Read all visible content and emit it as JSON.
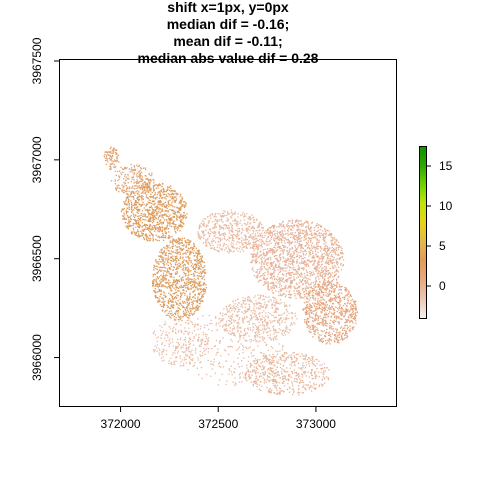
{
  "chart_data": {
    "type": "heatmap",
    "title_lines": [
      "shift x=1px, y=0px",
      "median dif = -0.16;",
      "mean dif = -0.11;",
      "median abs value dif = 0.28"
    ],
    "xlabel": "",
    "ylabel": "",
    "x_ticks": [
      {
        "value": 372000,
        "label": "372000"
      },
      {
        "value": 372500,
        "label": "372500"
      },
      {
        "value": 373000,
        "label": "373000"
      }
    ],
    "y_ticks": [
      {
        "value": 3966000,
        "label": "3966000"
      },
      {
        "value": 3966500,
        "label": "3966500"
      },
      {
        "value": 3967000,
        "label": "3967000"
      },
      {
        "value": 3967500,
        "label": "3967500"
      }
    ],
    "xlim": [
      371690,
      373410
    ],
    "ylim": [
      3965755,
      3967505
    ],
    "colorbar": {
      "range": [
        -4,
        17.5
      ],
      "ticks": [
        {
          "value": 0,
          "label": "0"
        },
        {
          "value": 5,
          "label": "5"
        },
        {
          "value": 10,
          "label": "10"
        },
        {
          "value": 15,
          "label": "15"
        }
      ],
      "colors": [
        "#f2f2f2",
        "#ecc7b3",
        "#e6aa7e",
        "#e29a5b",
        "#e2b94a",
        "#e8d21c",
        "#c2e30a",
        "#6fd100",
        "#2ba600",
        "#0c9400"
      ]
    },
    "regions": [
      {
        "x": 372170,
        "y": 3966740,
        "rx": 170,
        "ry": 150,
        "n": 900,
        "value": 0.4,
        "color": "#dd9a5a"
      },
      {
        "x": 372300,
        "y": 3966400,
        "rx": 140,
        "ry": 210,
        "n": 1000,
        "value": 0.3,
        "color": "#dc9c5e"
      },
      {
        "x": 372060,
        "y": 3966900,
        "rx": 110,
        "ry": 80,
        "n": 220,
        "value": 0.1,
        "color": "#dfa470"
      },
      {
        "x": 371950,
        "y": 3967010,
        "rx": 40,
        "ry": 60,
        "n": 80,
        "value": 0.2,
        "color": "#dfa06a"
      },
      {
        "x": 372560,
        "y": 3966640,
        "rx": 170,
        "ry": 110,
        "n": 500,
        "value": -0.2,
        "color": "#e8b9a0"
      },
      {
        "x": 372900,
        "y": 3966500,
        "rx": 240,
        "ry": 200,
        "n": 1500,
        "value": -0.2,
        "color": "#e6b095"
      },
      {
        "x": 373070,
        "y": 3966230,
        "rx": 140,
        "ry": 160,
        "n": 700,
        "value": 0.1,
        "color": "#e4a47c"
      },
      {
        "x": 372700,
        "y": 3966200,
        "rx": 200,
        "ry": 120,
        "n": 500,
        "value": -0.3,
        "color": "#e9bda6"
      },
      {
        "x": 372850,
        "y": 3965920,
        "rx": 220,
        "ry": 110,
        "n": 500,
        "value": -0.2,
        "color": "#e7b59a"
      },
      {
        "x": 372550,
        "y": 3966050,
        "rx": 280,
        "ry": 190,
        "n": 300,
        "value": -0.1,
        "color": "#e8b89f"
      },
      {
        "x": 372300,
        "y": 3966080,
        "rx": 150,
        "ry": 120,
        "n": 200,
        "value": -0.2,
        "color": "#e9bca5"
      }
    ]
  }
}
